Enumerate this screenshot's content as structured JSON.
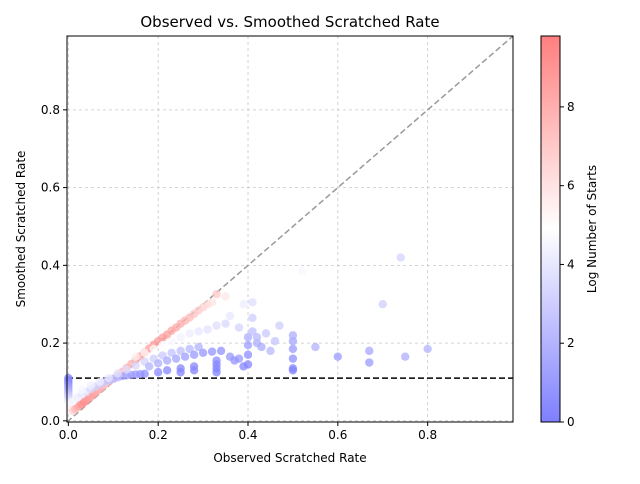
{
  "chart_data": {
    "type": "scatter",
    "title": "Observed vs. Smoothed Scratched Rate",
    "xlabel": "Observed Scratched Rate",
    "ylabel": "Smoothed Scratched Rate",
    "xlim": [
      -0.003,
      0.99
    ],
    "ylim": [
      -0.003,
      0.99
    ],
    "x_ticks": [
      0.0,
      0.2,
      0.4,
      0.6,
      0.8
    ],
    "y_ticks": [
      0.0,
      0.2,
      0.4,
      0.6,
      0.8
    ],
    "x_tick_labels": [
      "0.0",
      "0.2",
      "0.4",
      "0.6",
      "0.8"
    ],
    "y_tick_labels": [
      "0.0",
      "0.2",
      "0.4",
      "0.6",
      "0.8"
    ],
    "grid": true,
    "colormap": "bwr",
    "colors": {
      "low": "#7f7fff",
      "mid": "#ffffff",
      "high": "#ff7f7f",
      "diagonal": "#999999",
      "baseline": "#000000",
      "grid": "#c8c8c8"
    },
    "reference_lines": [
      {
        "kind": "identity",
        "style": "dashed",
        "color": "#999999"
      },
      {
        "kind": "horizontal",
        "y": 0.11,
        "style": "dashed",
        "color": "#000000"
      }
    ],
    "colorbar": {
      "label": "Log Number of Starts",
      "min": 0,
      "max": 9.8,
      "ticks": [
        0,
        2,
        4,
        6,
        8
      ],
      "tick_labels": [
        "0",
        "2",
        "4",
        "6",
        "8"
      ]
    },
    "points": [
      {
        "x": 0.0,
        "y": 0.11,
        "c": 0.0
      },
      {
        "x": 0.0,
        "y": 0.105,
        "c": 0.2
      },
      {
        "x": 0.0,
        "y": 0.1,
        "c": 0.4
      },
      {
        "x": 0.0,
        "y": 0.095,
        "c": 0.7
      },
      {
        "x": 0.0,
        "y": 0.09,
        "c": 1.0
      },
      {
        "x": 0.0,
        "y": 0.085,
        "c": 1.3
      },
      {
        "x": 0.0,
        "y": 0.08,
        "c": 1.6
      },
      {
        "x": 0.0,
        "y": 0.075,
        "c": 2.0
      },
      {
        "x": 0.0,
        "y": 0.07,
        "c": 2.4
      },
      {
        "x": 0.0,
        "y": 0.065,
        "c": 2.8
      },
      {
        "x": 0.0,
        "y": 0.06,
        "c": 3.2
      },
      {
        "x": 0.0,
        "y": 0.055,
        "c": 3.6
      },
      {
        "x": 0.0,
        "y": 0.05,
        "c": 4.0
      },
      {
        "x": 0.0,
        "y": 0.045,
        "c": 4.4
      },
      {
        "x": 0.0,
        "y": 0.04,
        "c": 4.8
      },
      {
        "x": 0.005,
        "y": 0.03,
        "c": 5.5
      },
      {
        "x": 0.01,
        "y": 0.025,
        "c": 6.5
      },
      {
        "x": 0.015,
        "y": 0.03,
        "c": 7.5
      },
      {
        "x": 0.02,
        "y": 0.035,
        "c": 8.0
      },
      {
        "x": 0.025,
        "y": 0.04,
        "c": 8.5
      },
      {
        "x": 0.03,
        "y": 0.042,
        "c": 9.0
      },
      {
        "x": 0.035,
        "y": 0.048,
        "c": 9.2
      },
      {
        "x": 0.04,
        "y": 0.052,
        "c": 9.0
      },
      {
        "x": 0.045,
        "y": 0.058,
        "c": 8.8
      },
      {
        "x": 0.05,
        "y": 0.062,
        "c": 8.5
      },
      {
        "x": 0.055,
        "y": 0.068,
        "c": 8.6
      },
      {
        "x": 0.06,
        "y": 0.072,
        "c": 8.4
      },
      {
        "x": 0.065,
        "y": 0.078,
        "c": 8.2
      },
      {
        "x": 0.07,
        "y": 0.082,
        "c": 8.0
      },
      {
        "x": 0.075,
        "y": 0.088,
        "c": 7.8
      },
      {
        "x": 0.08,
        "y": 0.092,
        "c": 7.5
      },
      {
        "x": 0.09,
        "y": 0.1,
        "c": 7.2
      },
      {
        "x": 0.1,
        "y": 0.108,
        "c": 7.0
      },
      {
        "x": 0.11,
        "y": 0.118,
        "c": 7.4
      },
      {
        "x": 0.12,
        "y": 0.126,
        "c": 7.6
      },
      {
        "x": 0.13,
        "y": 0.136,
        "c": 7.8
      },
      {
        "x": 0.14,
        "y": 0.146,
        "c": 8.0
      },
      {
        "x": 0.15,
        "y": 0.156,
        "c": 8.2
      },
      {
        "x": 0.16,
        "y": 0.166,
        "c": 8.3
      },
      {
        "x": 0.17,
        "y": 0.176,
        "c": 8.5
      },
      {
        "x": 0.18,
        "y": 0.186,
        "c": 8.6
      },
      {
        "x": 0.19,
        "y": 0.196,
        "c": 8.7
      },
      {
        "x": 0.2,
        "y": 0.205,
        "c": 8.8
      },
      {
        "x": 0.21,
        "y": 0.214,
        "c": 8.7
      },
      {
        "x": 0.22,
        "y": 0.222,
        "c": 8.6
      },
      {
        "x": 0.23,
        "y": 0.232,
        "c": 8.4
      },
      {
        "x": 0.24,
        "y": 0.24,
        "c": 8.2
      },
      {
        "x": 0.25,
        "y": 0.25,
        "c": 8.0
      },
      {
        "x": 0.26,
        "y": 0.258,
        "c": 7.8
      },
      {
        "x": 0.27,
        "y": 0.266,
        "c": 7.5
      },
      {
        "x": 0.28,
        "y": 0.275,
        "c": 7.2
      },
      {
        "x": 0.29,
        "y": 0.284,
        "c": 6.9
      },
      {
        "x": 0.3,
        "y": 0.292,
        "c": 6.6
      },
      {
        "x": 0.31,
        "y": 0.3,
        "c": 6.3
      },
      {
        "x": 0.32,
        "y": 0.305,
        "c": 6.0
      },
      {
        "x": 0.33,
        "y": 0.326,
        "c": 7.0
      },
      {
        "x": 0.35,
        "y": 0.32,
        "c": 5.8
      },
      {
        "x": 0.01,
        "y": 0.05,
        "c": 4.5
      },
      {
        "x": 0.02,
        "y": 0.06,
        "c": 4.2
      },
      {
        "x": 0.03,
        "y": 0.068,
        "c": 4.0
      },
      {
        "x": 0.04,
        "y": 0.075,
        "c": 3.8
      },
      {
        "x": 0.05,
        "y": 0.082,
        "c": 3.5
      },
      {
        "x": 0.06,
        "y": 0.088,
        "c": 3.2
      },
      {
        "x": 0.07,
        "y": 0.094,
        "c": 3.0
      },
      {
        "x": 0.08,
        "y": 0.1,
        "c": 2.8
      },
      {
        "x": 0.09,
        "y": 0.104,
        "c": 2.5
      },
      {
        "x": 0.1,
        "y": 0.108,
        "c": 2.2
      },
      {
        "x": 0.11,
        "y": 0.112,
        "c": 2.0
      },
      {
        "x": 0.12,
        "y": 0.115,
        "c": 1.8
      },
      {
        "x": 0.13,
        "y": 0.117,
        "c": 1.5
      },
      {
        "x": 0.14,
        "y": 0.118,
        "c": 1.2
      },
      {
        "x": 0.15,
        "y": 0.119,
        "c": 1.0
      },
      {
        "x": 0.16,
        "y": 0.12,
        "c": 0.8
      },
      {
        "x": 0.17,
        "y": 0.121,
        "c": 0.6
      },
      {
        "x": 0.03,
        "y": 0.08,
        "c": 4.6
      },
      {
        "x": 0.05,
        "y": 0.092,
        "c": 4.4
      },
      {
        "x": 0.07,
        "y": 0.1,
        "c": 4.2
      },
      {
        "x": 0.09,
        "y": 0.11,
        "c": 4.0
      },
      {
        "x": 0.11,
        "y": 0.122,
        "c": 3.8
      },
      {
        "x": 0.13,
        "y": 0.132,
        "c": 3.6
      },
      {
        "x": 0.15,
        "y": 0.142,
        "c": 3.4
      },
      {
        "x": 0.17,
        "y": 0.152,
        "c": 3.2
      },
      {
        "x": 0.19,
        "y": 0.16,
        "c": 3.0
      },
      {
        "x": 0.21,
        "y": 0.168,
        "c": 2.8
      },
      {
        "x": 0.23,
        "y": 0.175,
        "c": 2.6
      },
      {
        "x": 0.25,
        "y": 0.18,
        "c": 2.4
      },
      {
        "x": 0.27,
        "y": 0.185,
        "c": 2.2
      },
      {
        "x": 0.29,
        "y": 0.19,
        "c": 2.0
      },
      {
        "x": 0.15,
        "y": 0.165,
        "c": 5.5
      },
      {
        "x": 0.17,
        "y": 0.175,
        "c": 5.2
      },
      {
        "x": 0.19,
        "y": 0.185,
        "c": 5.0
      },
      {
        "x": 0.21,
        "y": 0.195,
        "c": 4.8
      },
      {
        "x": 0.23,
        "y": 0.205,
        "c": 4.6
      },
      {
        "x": 0.25,
        "y": 0.215,
        "c": 4.4
      },
      {
        "x": 0.27,
        "y": 0.225,
        "c": 4.2
      },
      {
        "x": 0.29,
        "y": 0.23,
        "c": 4.0
      },
      {
        "x": 0.31,
        "y": 0.235,
        "c": 3.8
      },
      {
        "x": 0.33,
        "y": 0.245,
        "c": 3.6
      },
      {
        "x": 0.35,
        "y": 0.25,
        "c": 3.4
      },
      {
        "x": 0.18,
        "y": 0.14,
        "c": 2.0
      },
      {
        "x": 0.2,
        "y": 0.148,
        "c": 1.8
      },
      {
        "x": 0.22,
        "y": 0.155,
        "c": 1.6
      },
      {
        "x": 0.24,
        "y": 0.16,
        "c": 1.4
      },
      {
        "x": 0.26,
        "y": 0.165,
        "c": 1.2
      },
      {
        "x": 0.28,
        "y": 0.17,
        "c": 1.0
      },
      {
        "x": 0.3,
        "y": 0.175,
        "c": 0.9
      },
      {
        "x": 0.32,
        "y": 0.178,
        "c": 0.8
      },
      {
        "x": 0.34,
        "y": 0.18,
        "c": 0.7
      },
      {
        "x": 0.36,
        "y": 0.165,
        "c": 0.9
      },
      {
        "x": 0.38,
        "y": 0.16,
        "c": 1.0
      },
      {
        "x": 0.2,
        "y": 0.125,
        "c": 0.4
      },
      {
        "x": 0.22,
        "y": 0.13,
        "c": 0.3
      },
      {
        "x": 0.25,
        "y": 0.125,
        "c": 0.2
      },
      {
        "x": 0.25,
        "y": 0.135,
        "c": 0.3
      },
      {
        "x": 0.28,
        "y": 0.13,
        "c": 0.2
      },
      {
        "x": 0.28,
        "y": 0.14,
        "c": 0.3
      },
      {
        "x": 0.33,
        "y": 0.125,
        "c": 0.1
      },
      {
        "x": 0.33,
        "y": 0.135,
        "c": 0.2
      },
      {
        "x": 0.33,
        "y": 0.145,
        "c": 0.3
      },
      {
        "x": 0.33,
        "y": 0.155,
        "c": 0.4
      },
      {
        "x": 0.37,
        "y": 0.155,
        "c": 0.8
      },
      {
        "x": 0.39,
        "y": 0.14,
        "c": 0.3
      },
      {
        "x": 0.4,
        "y": 0.145,
        "c": 0.2
      },
      {
        "x": 0.4,
        "y": 0.17,
        "c": 0.6
      },
      {
        "x": 0.4,
        "y": 0.195,
        "c": 1.2
      },
      {
        "x": 0.4,
        "y": 0.215,
        "c": 1.8
      },
      {
        "x": 0.41,
        "y": 0.23,
        "c": 2.4
      },
      {
        "x": 0.42,
        "y": 0.2,
        "c": 1.8
      },
      {
        "x": 0.42,
        "y": 0.215,
        "c": 2.2
      },
      {
        "x": 0.43,
        "y": 0.19,
        "c": 1.6
      },
      {
        "x": 0.44,
        "y": 0.225,
        "c": 2.8
      },
      {
        "x": 0.41,
        "y": 0.265,
        "c": 3.0
      },
      {
        "x": 0.41,
        "y": 0.305,
        "c": 3.6
      },
      {
        "x": 0.38,
        "y": 0.24,
        "c": 3.2
      },
      {
        "x": 0.36,
        "y": 0.27,
        "c": 4.0
      },
      {
        "x": 0.39,
        "y": 0.3,
        "c": 4.2
      },
      {
        "x": 0.45,
        "y": 0.18,
        "c": 2.2
      },
      {
        "x": 0.46,
        "y": 0.205,
        "c": 2.6
      },
      {
        "x": 0.47,
        "y": 0.245,
        "c": 3.0
      },
      {
        "x": 0.5,
        "y": 0.13,
        "c": 0.1
      },
      {
        "x": 0.5,
        "y": 0.135,
        "c": 0.2
      },
      {
        "x": 0.5,
        "y": 0.16,
        "c": 0.6
      },
      {
        "x": 0.5,
        "y": 0.185,
        "c": 1.0
      },
      {
        "x": 0.5,
        "y": 0.205,
        "c": 1.4
      },
      {
        "x": 0.5,
        "y": 0.22,
        "c": 1.8
      },
      {
        "x": 0.52,
        "y": 0.385,
        "c": 4.6
      },
      {
        "x": 0.55,
        "y": 0.19,
        "c": 2.0
      },
      {
        "x": 0.6,
        "y": 0.165,
        "c": 1.0
      },
      {
        "x": 0.67,
        "y": 0.15,
        "c": 1.0
      },
      {
        "x": 0.67,
        "y": 0.18,
        "c": 1.5
      },
      {
        "x": 0.7,
        "y": 0.3,
        "c": 3.0
      },
      {
        "x": 0.74,
        "y": 0.42,
        "c": 3.2
      },
      {
        "x": 0.75,
        "y": 0.165,
        "c": 1.8
      },
      {
        "x": 0.8,
        "y": 0.185,
        "c": 2.0
      }
    ]
  }
}
